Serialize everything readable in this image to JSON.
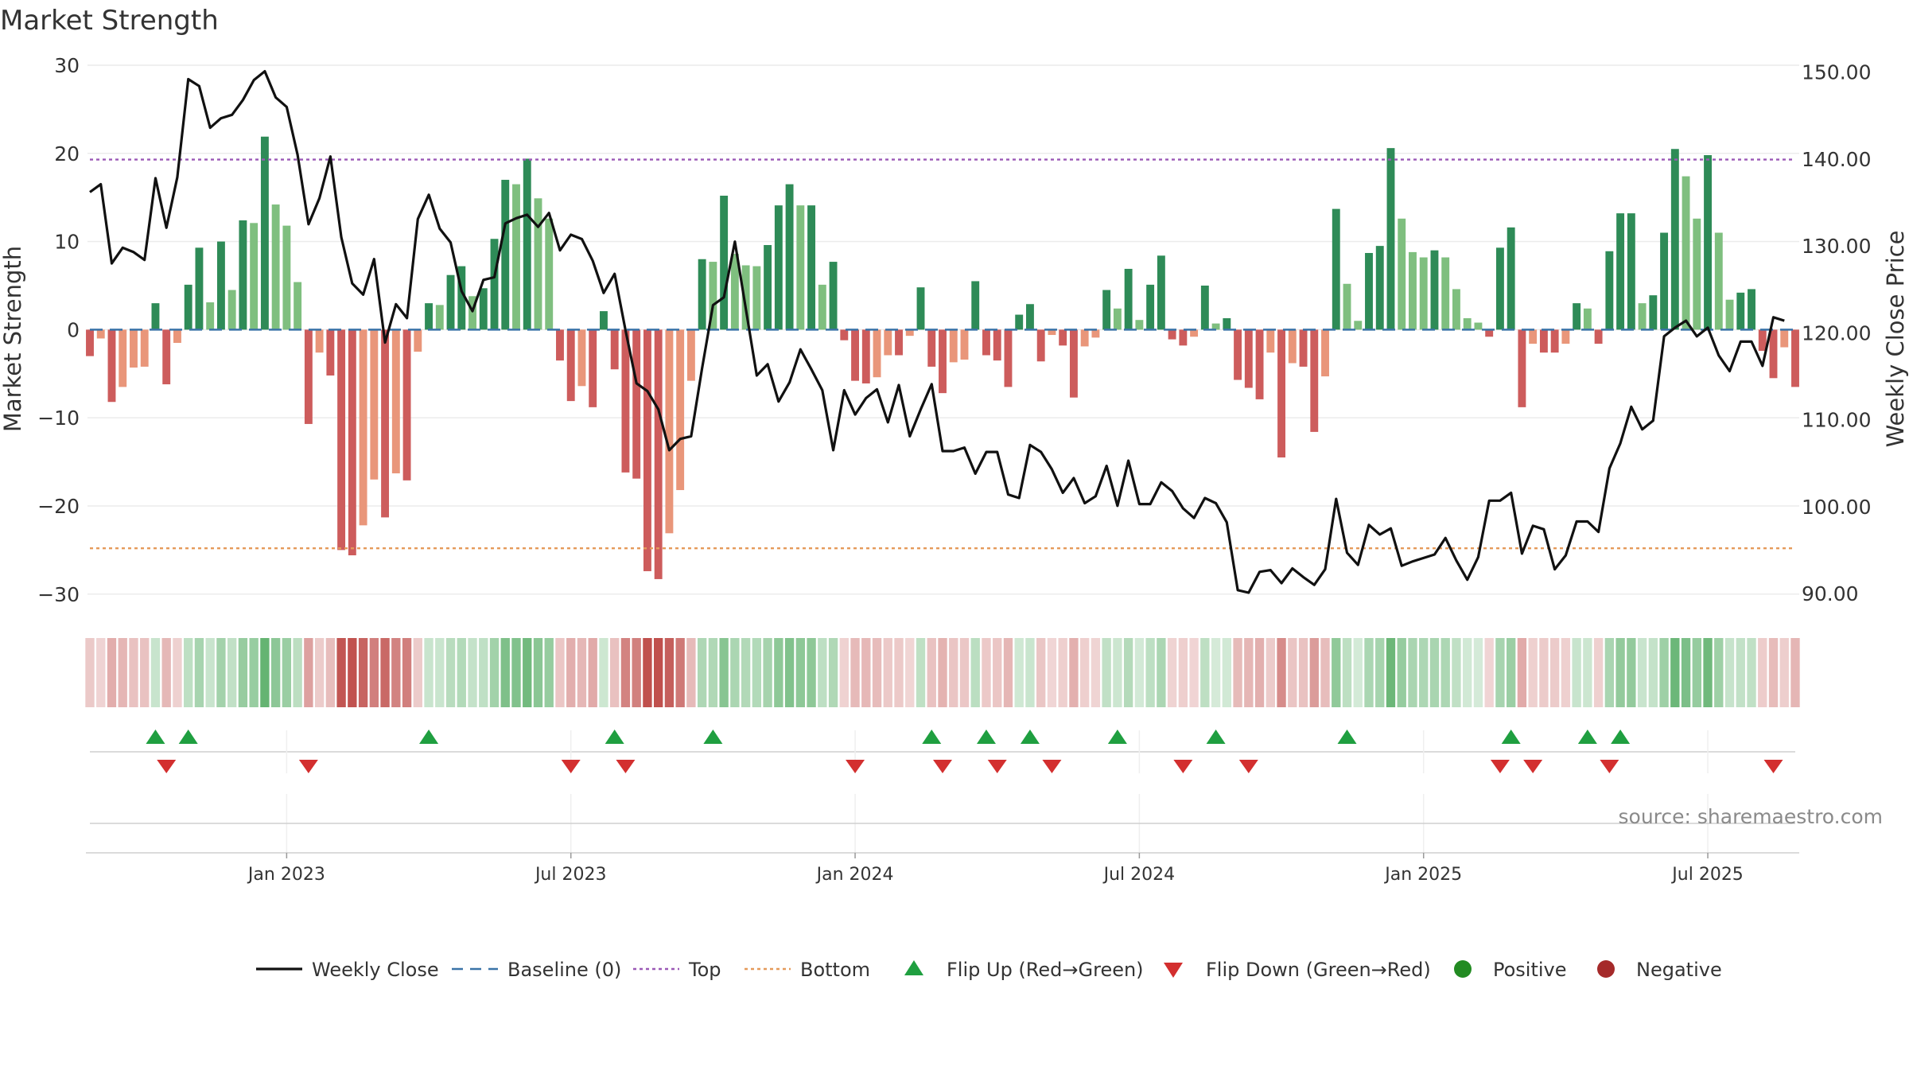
{
  "chart_data": {
    "type": "bar",
    "title": "Market Strength",
    "left_axis": {
      "label": "Market Strength",
      "range": [
        -33,
        30
      ],
      "ticks": [
        30,
        20,
        10,
        0,
        -10,
        -20,
        -30
      ],
      "tick_labels": [
        "30",
        "20",
        "10",
        "0",
        "−10",
        "−20",
        "−30"
      ]
    },
    "right_axis": {
      "label": "Weekly Close Price",
      "range": [
        86.9,
        150.8
      ],
      "ticks": [
        150,
        140,
        130,
        120,
        110,
        100,
        90
      ],
      "tick_labels": [
        "150.00",
        "140.00",
        "130.00",
        "120.00",
        "110.00",
        "100.00",
        "90.00"
      ]
    },
    "reference_lines": {
      "baseline": 0,
      "top": 19.3,
      "bottom": -24.8
    },
    "x_ticks": [
      {
        "label": "Jan 2023",
        "index": 18
      },
      {
        "label": "Jul 2023",
        "index": 44
      },
      {
        "label": "Jan 2024",
        "index": 70
      },
      {
        "label": "Jul 2024",
        "index": 96
      },
      {
        "label": "Jan 2025",
        "index": 122
      },
      {
        "label": "Jul 2025",
        "index": 148
      }
    ],
    "strength": [
      -3,
      -1,
      -8.2,
      -6.5,
      -4.3,
      -4.2,
      3,
      -6.2,
      -1.5,
      5.1,
      9.3,
      3.1,
      10,
      4.5,
      12.4,
      12.1,
      21.9,
      14.2,
      11.8,
      5.4,
      -10.7,
      -2.6,
      -5.2,
      -25,
      -25.6,
      -22.2,
      -17,
      -21.3,
      -16.3,
      -17.1,
      -2.5,
      3,
      2.8,
      6.2,
      7.2,
      3.8,
      4.7,
      10.3,
      17,
      16.5,
      19.4,
      14.9,
      12.6,
      -3.5,
      -8.1,
      -6.4,
      -8.8,
      2.1,
      -4.5,
      -16.2,
      -16.9,
      -27.4,
      -28.3,
      -23.1,
      -18.2,
      -5.8,
      8,
      7.7,
      15.2,
      8.6,
      7.3,
      7.2,
      9.6,
      14.1,
      16.5,
      14.1,
      14.1,
      5.1,
      7.7,
      -1.2,
      -5.8,
      -6.1,
      -5.4,
      -2.9,
      -2.9,
      -0.7,
      4.8,
      -4.2,
      -7.2,
      -3.7,
      -3.4,
      5.5,
      -2.9,
      -3.5,
      -6.5,
      1.7,
      2.9,
      -3.6,
      -0.6,
      -1.8,
      -7.7,
      -1.9,
      -0.9,
      4.5,
      2.4,
      6.9,
      1.1,
      5.1,
      8.4,
      -1.1,
      -1.8,
      -0.8,
      5,
      0.7,
      1.3,
      -5.7,
      -6.6,
      -7.9,
      -2.6,
      -14.5,
      -3.8,
      -4.2,
      -11.6,
      -5.3,
      13.7,
      5.2,
      1,
      8.7,
      9.5,
      20.6,
      12.6,
      8.8,
      8.2,
      9,
      8.2,
      4.6,
      1.3,
      0.8,
      -0.8,
      9.3,
      11.6,
      -8.8,
      -1.6,
      -2.6,
      -2.6,
      -1.6,
      3,
      2.4,
      -1.6,
      8.9,
      13.2,
      13.2,
      3,
      3.9,
      11,
      20.5,
      17.4,
      12.6,
      19.8,
      11,
      3.4,
      4.2,
      4.6,
      -2.4,
      -5.5,
      -2,
      -6.5
    ],
    "weekly_close": [
      136.2,
      137.1,
      128,
      129.8,
      129.3,
      128.4,
      137.8,
      132.1,
      137.9,
      149.2,
      148.4,
      143.6,
      144.7,
      145.1,
      146.8,
      149.1,
      150.1,
      147.1,
      146,
      140.5,
      132.5,
      135.5,
      140.3,
      131,
      125.7,
      124.4,
      128.5,
      118.9,
      123.3,
      121.7,
      133.1,
      135.9,
      132,
      130.4,
      124.8,
      122.5,
      126.1,
      126.4,
      132.6,
      133.2,
      133.6,
      132.2,
      133.8,
      129.5,
      131.3,
      130.8,
      128.3,
      124.6,
      126.8,
      120.3,
      114.2,
      113.3,
      111.2,
      106.5,
      107.8,
      108.1,
      115.9,
      123.2,
      124.1,
      130.5,
      122.8,
      115.1,
      116.4,
      112.1,
      114.3,
      118.1,
      115.8,
      113.4,
      106.5,
      113.4,
      110.6,
      112.5,
      113.5,
      109.7,
      114,
      108.1,
      111.2,
      114.1,
      106.4,
      106.4,
      106.8,
      103.8,
      106.3,
      106.3,
      101.4,
      101,
      107.1,
      106.3,
      104.3,
      101.6,
      103.3,
      100.4,
      101.2,
      104.7,
      100.1,
      105.3,
      100.3,
      100.3,
      102.8,
      101.8,
      99.8,
      98.7,
      101,
      100.4,
      98.2,
      90.4,
      90.1,
      92.5,
      92.7,
      91.2,
      92.9,
      91.9,
      91,
      92.8,
      100.9,
      94.7,
      93.3,
      97.9,
      96.8,
      97.5,
      93.2,
      93.7,
      94.1,
      94.5,
      96.4,
      93.8,
      91.6,
      94.2,
      100.7,
      100.7,
      101.6,
      94.6,
      97.8,
      97.4,
      92.8,
      94.4,
      98.3,
      98.3,
      97.1,
      104.4,
      107.3,
      111.5,
      108.9,
      109.9,
      119.6,
      120.6,
      121.4,
      119.6,
      120.6,
      117.4,
      115.6,
      119,
      119,
      116.2,
      121.8,
      121.4
    ],
    "flip_up": [
      6,
      9,
      31,
      48,
      57,
      77,
      82,
      86,
      94,
      103,
      115,
      130,
      137,
      140
    ],
    "flip_down": [
      7,
      20,
      44,
      49,
      70,
      78,
      83,
      88,
      100,
      106,
      129,
      132,
      139,
      154
    ]
  },
  "source": "source: sharemaestro.com",
  "legend": [
    {
      "label": "Weekly Close",
      "kind": "line",
      "color": "#111111"
    },
    {
      "label": "Baseline (0)",
      "kind": "dash",
      "color": "#3a73a8"
    },
    {
      "label": "Top",
      "kind": "dot",
      "color": "#9b59b6"
    },
    {
      "label": "Bottom",
      "kind": "dot",
      "color": "#e59a5a"
    },
    {
      "label": "Flip Up (Red→Green)",
      "kind": "tri-up",
      "color": "#1f9f40"
    },
    {
      "label": "Flip Down (Green→Red)",
      "kind": "tri-down",
      "color": "#d32f2f"
    },
    {
      "label": "Positive",
      "kind": "circle",
      "color": "#228b22"
    },
    {
      "label": "Negative",
      "kind": "circle",
      "color": "#a52a2a"
    }
  ],
  "colors": {
    "pos_dark": "#2e8b57",
    "pos_light": "#7fbf7f",
    "neg_dark": "#cd5c5c",
    "neg_light": "#e9967a",
    "top_line": "#9b59b6",
    "bottom_line": "#e59a5a",
    "baseline": "#3a73a8",
    "close_line": "#111111"
  }
}
